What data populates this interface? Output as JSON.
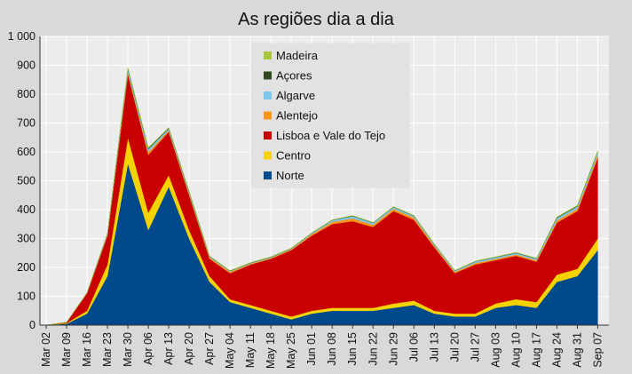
{
  "chart_data": {
    "type": "area",
    "stacked": true,
    "title": "As regiões dia a dia",
    "xlabel": "",
    "ylabel": "",
    "ylim": [
      0,
      1000
    ],
    "yticks": [
      0,
      100,
      200,
      300,
      400,
      500,
      600,
      700,
      800,
      900,
      1000
    ],
    "ytick_labels": [
      "0",
      "100",
      "200",
      "300",
      "400",
      "500",
      "600",
      "700",
      "800",
      "900",
      "1 000"
    ],
    "xtick_labels": [
      "Mar 02",
      "Mar 09",
      "Mar 16",
      "Mar 23",
      "Mar 30",
      "Apr 06",
      "Apr 13",
      "Apr 20",
      "Apr 27",
      "May 04",
      "May 11",
      "May 18",
      "May 25",
      "Jun 01",
      "Jun 08",
      "Jun 15",
      "Jun 22",
      "Jun 29",
      "Jul 06",
      "Jul 13",
      "Jul 20",
      "Jul 27",
      "Aug 03",
      "Aug 10",
      "Aug 17",
      "Aug 24",
      "Aug 31",
      "Sep 07"
    ],
    "grid": true,
    "legend_position": "top-center",
    "legend_order": [
      "Madeira",
      "Açores",
      "Algarve",
      "Alentejo",
      "Lisboa e Vale do Tejo",
      "Centro",
      "Norte"
    ],
    "x_note": "one value per week (weekly samples starting Mar 02)",
    "series": [
      {
        "name": "Norte",
        "color": "#004a8c",
        "values": [
          0,
          5,
          40,
          170,
          560,
          330,
          480,
          300,
          150,
          80,
          60,
          40,
          20,
          40,
          50,
          50,
          50,
          60,
          70,
          40,
          30,
          30,
          60,
          70,
          60,
          150,
          170,
          260
        ]
      },
      {
        "name": "Centro",
        "color": "#f5d300",
        "values": [
          0,
          2,
          10,
          40,
          90,
          60,
          40,
          30,
          20,
          10,
          10,
          10,
          10,
          10,
          10,
          10,
          10,
          15,
          15,
          10,
          10,
          10,
          15,
          20,
          20,
          25,
          25,
          40
        ]
      },
      {
        "name": "Lisboa e Vale do Tejo",
        "color": "#c80000",
        "values": [
          0,
          3,
          60,
          100,
          220,
          200,
          150,
          120,
          60,
          90,
          140,
          180,
          230,
          260,
          290,
          300,
          280,
          320,
          280,
          220,
          140,
          170,
          150,
          150,
          140,
          180,
          200,
          280
        ]
      },
      {
        "name": "Alentejo",
        "color": "#f7941d",
        "values": [
          0,
          0,
          1,
          2,
          6,
          10,
          5,
          5,
          5,
          5,
          3,
          3,
          3,
          5,
          8,
          10,
          8,
          8,
          8,
          6,
          5,
          5,
          5,
          5,
          5,
          8,
          8,
          10
        ]
      },
      {
        "name": "Algarve",
        "color": "#7cc8f0",
        "values": [
          0,
          0,
          1,
          3,
          10,
          10,
          6,
          5,
          3,
          2,
          2,
          2,
          2,
          3,
          5,
          8,
          6,
          6,
          5,
          4,
          3,
          5,
          5,
          5,
          5,
          8,
          8,
          10
        ]
      },
      {
        "name": "Açores",
        "color": "#2e4a1e",
        "values": [
          0,
          0,
          0,
          1,
          3,
          3,
          2,
          2,
          1,
          1,
          1,
          1,
          1,
          1,
          1,
          1,
          1,
          1,
          1,
          1,
          1,
          1,
          1,
          1,
          1,
          2,
          2,
          2
        ]
      },
      {
        "name": "Madeira",
        "color": "#a8c83c",
        "values": [
          0,
          0,
          0,
          1,
          3,
          2,
          2,
          2,
          1,
          1,
          1,
          1,
          1,
          1,
          1,
          1,
          1,
          1,
          1,
          1,
          1,
          1,
          1,
          1,
          1,
          2,
          2,
          2
        ]
      }
    ]
  }
}
